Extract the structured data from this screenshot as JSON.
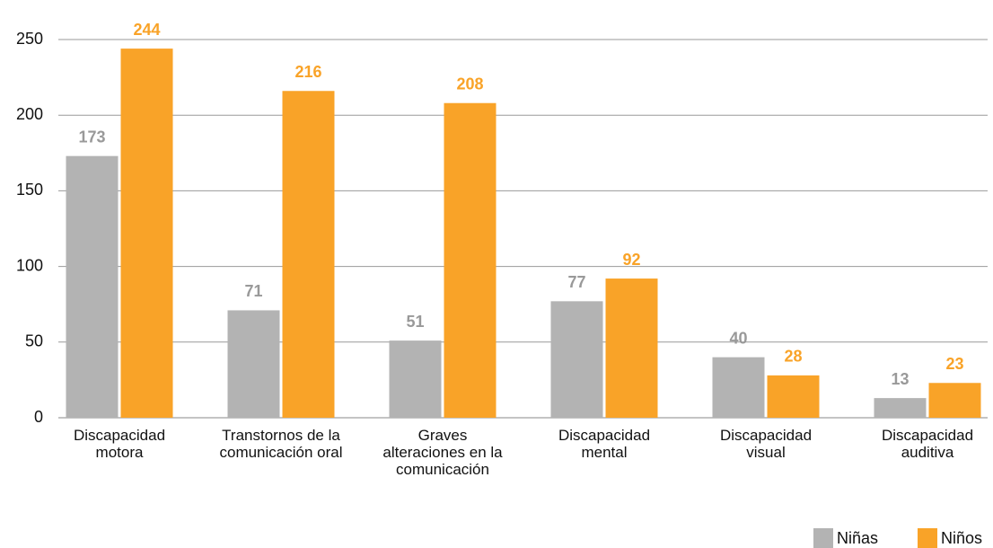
{
  "chart_data": {
    "type": "bar",
    "categories": [
      "Discapacidad motora",
      "Transtornos de la comunicación oral",
      "Graves alteraciones en la comunicación",
      "Discapacidad mental",
      "Discapacidad visual",
      "Discapacidad auditiva"
    ],
    "series": [
      {
        "name": "Niñas",
        "color": "#b3b3b3",
        "values": [
          173,
          71,
          51,
          77,
          40,
          13
        ]
      },
      {
        "name": "Niños",
        "color": "#f9a328",
        "values": [
          244,
          216,
          208,
          92,
          28,
          23
        ]
      }
    ],
    "ylim": [
      0,
      250
    ],
    "yticks": [
      0,
      50,
      100,
      150,
      200,
      250
    ],
    "grid": true,
    "legend": "bottom-right"
  }
}
